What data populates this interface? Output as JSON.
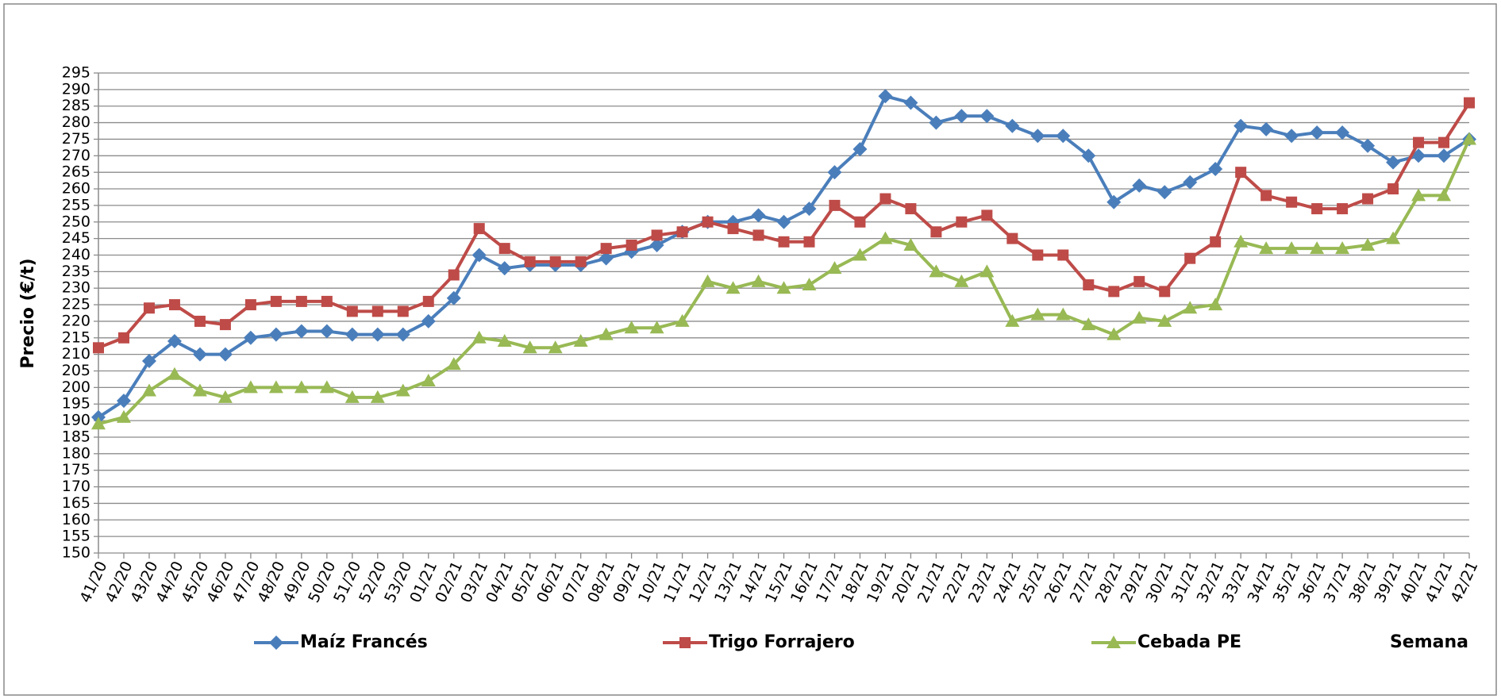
{
  "chart_data": {
    "type": "line",
    "y_label": "Precio (€/t)",
    "x_label": "Semana",
    "categories": [
      "41/20",
      "42/20",
      "43/20",
      "44/20",
      "45/20",
      "46/20",
      "47/20",
      "48/20",
      "49/20",
      "50/20",
      "51/20",
      "52/20",
      "53/20",
      "01/21",
      "02/21",
      "03/21",
      "04/21",
      "05/21",
      "06/21",
      "07/21",
      "08/21",
      "09/21",
      "10/21",
      "11/21",
      "12/21",
      "13/21",
      "14/21",
      "15/21",
      "16/21",
      "17/21",
      "18/21",
      "19/21",
      "20/21",
      "21/21",
      "22/21",
      "23/21",
      "24/21",
      "25/21",
      "26/21",
      "27/21",
      "28/21",
      "29/21",
      "30/21",
      "31/21",
      "32/21",
      "33/21",
      "34/21",
      "35/21",
      "36/21",
      "37/21",
      "38/21",
      "39/21",
      "40/21",
      "41/21",
      "42/21"
    ],
    "series": [
      {
        "name": "Maíz Francés",
        "color": "#4a7ebb",
        "marker": "diamond",
        "values": [
          191,
          196,
          208,
          214,
          210,
          210,
          215,
          216,
          217,
          217,
          216,
          216,
          216,
          220,
          227,
          240,
          236,
          237,
          237,
          237,
          239,
          241,
          243,
          247,
          250,
          250,
          252,
          250,
          254,
          265,
          272,
          288,
          286,
          280,
          282,
          282,
          279,
          276,
          276,
          270,
          256,
          261,
          259,
          262,
          266,
          279,
          278,
          276,
          277,
          277,
          273,
          268,
          270,
          270,
          275
        ]
      },
      {
        "name": "Trigo Forrajero",
        "color": "#be4b48",
        "marker": "square",
        "values": [
          212,
          215,
          224,
          225,
          220,
          219,
          225,
          226,
          226,
          226,
          223,
          223,
          223,
          226,
          234,
          248,
          242,
          238,
          238,
          238,
          242,
          243,
          246,
          247,
          250,
          248,
          246,
          244,
          244,
          255,
          250,
          257,
          254,
          247,
          250,
          252,
          245,
          240,
          240,
          231,
          229,
          232,
          229,
          239,
          244,
          265,
          258,
          256,
          254,
          254,
          257,
          260,
          274,
          274,
          286
        ]
      },
      {
        "name": "Cebada PE",
        "color": "#98b954",
        "marker": "triangle",
        "values": [
          189,
          191,
          199,
          204,
          199,
          197,
          200,
          200,
          200,
          200,
          197,
          197,
          199,
          202,
          207,
          215,
          214,
          212,
          212,
          214,
          216,
          218,
          218,
          220,
          232,
          230,
          232,
          230,
          231,
          236,
          240,
          245,
          243,
          235,
          232,
          235,
          220,
          222,
          222,
          219,
          216,
          221,
          220,
          224,
          225,
          244,
          242,
          242,
          242,
          242,
          243,
          245,
          258,
          258,
          275
        ]
      }
    ],
    "ylim": [
      150,
      295
    ],
    "yticks": [
      150,
      155,
      160,
      165,
      170,
      175,
      180,
      185,
      190,
      195,
      200,
      205,
      210,
      215,
      220,
      225,
      230,
      235,
      240,
      245,
      250,
      255,
      260,
      265,
      270,
      275,
      280,
      285,
      290,
      295
    ],
    "grid": true
  }
}
